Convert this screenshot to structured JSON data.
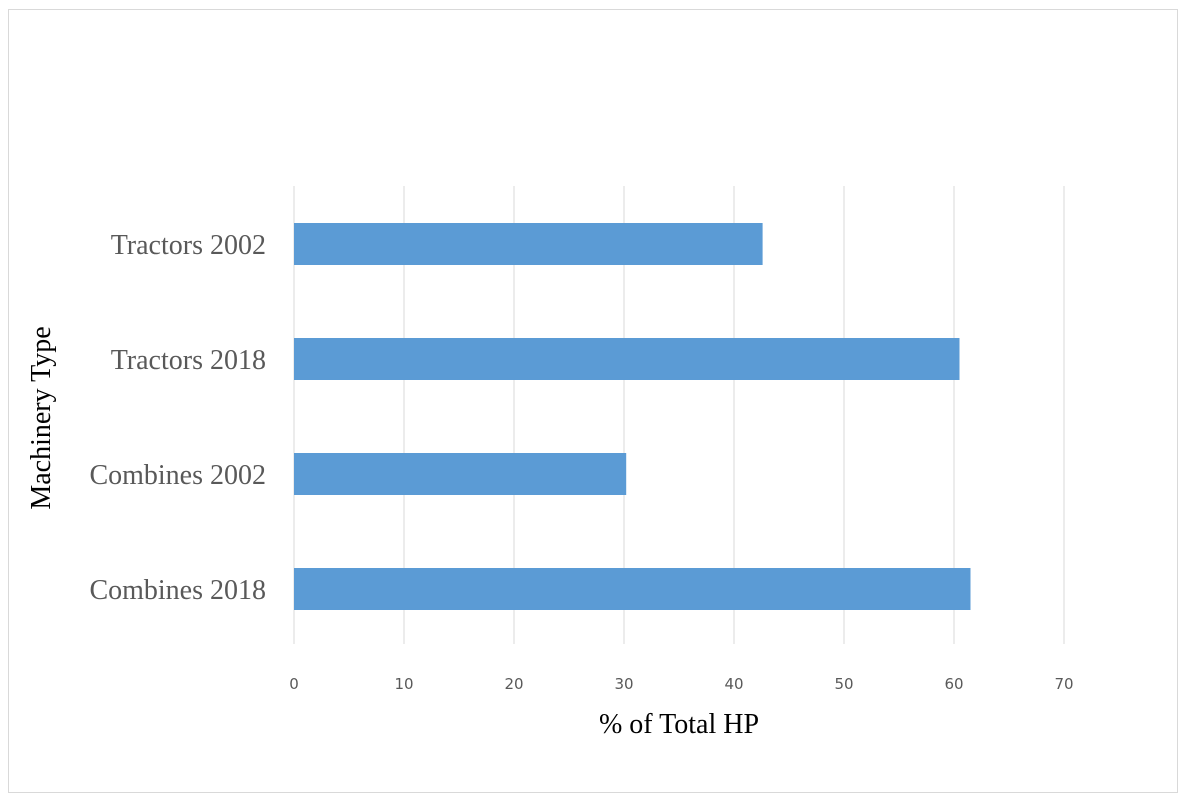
{
  "chart_data": {
    "type": "bar",
    "orientation": "horizontal",
    "title": "",
    "xlabel": "% of Total HP",
    "ylabel": "Machinery Type",
    "categories": [
      "Tractors 2002",
      "Tractors 2018",
      "Combines 2002",
      "Combines 2018"
    ],
    "values": [
      42.6,
      60.5,
      30.2,
      61.5
    ],
    "xlim": [
      0,
      70
    ],
    "xticks": [
      "0",
      "10",
      "20",
      "30",
      "40",
      "50",
      "60",
      "70"
    ],
    "grid": true,
    "legend": "none",
    "bar_color": "#5b9bd5",
    "grid_color": "#d9d9d9",
    "label_color": "#595959"
  }
}
